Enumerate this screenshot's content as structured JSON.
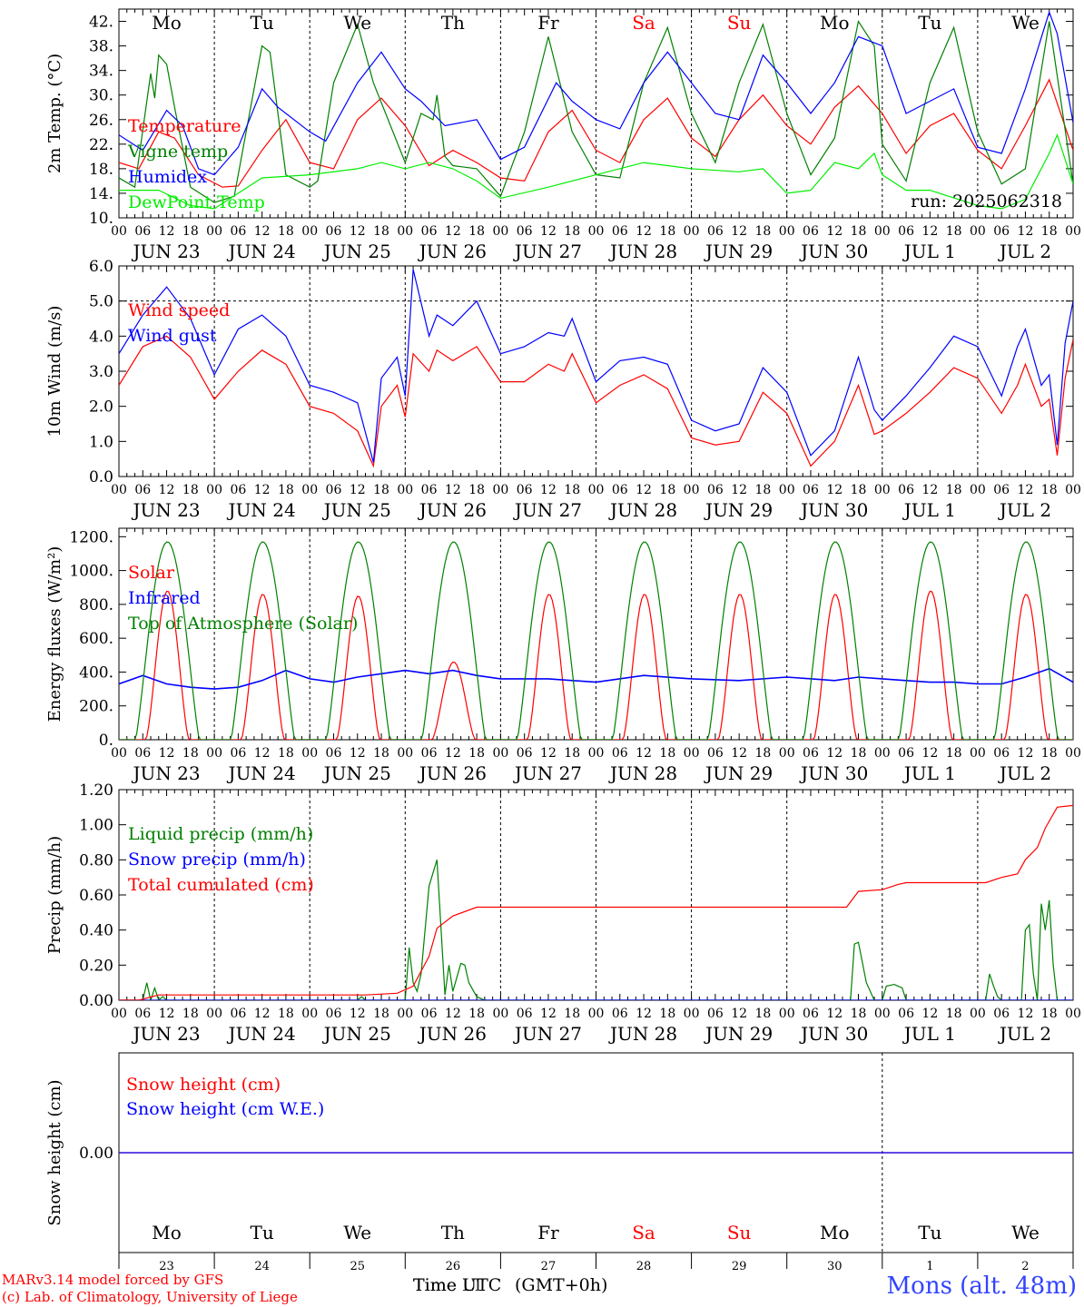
{
  "colors": {
    "red": "#ff0000",
    "green": "#008000",
    "blue": "#0000ff",
    "lime": "#00ee00",
    "black": "#000000",
    "footer_blue": "#3344ff"
  },
  "days": {
    "weekday_labels": [
      "Mo",
      "Tu",
      "We",
      "Th",
      "Fr",
      "Sa",
      "Su",
      "Mo",
      "Tu",
      "We"
    ],
    "weekend_indices": [
      5,
      6
    ],
    "date_labels": [
      "JUN 23",
      "JUN 24",
      "JUN 25",
      "JUN 26",
      "JUN 27",
      "JUN 28",
      "JUN 29",
      "JUN 30",
      "JUL  1",
      "JUL  2"
    ],
    "day_numbers": [
      "23",
      "24",
      "25",
      "26",
      "27",
      "28",
      "29",
      "30",
      "1",
      "2"
    ],
    "hour_tick_labels": [
      "00",
      "06",
      "12",
      "18"
    ],
    "end_label": "00"
  },
  "chart_data": [
    {
      "id": "temperature",
      "type": "line",
      "ylabel": "2m Temp. (°C)",
      "ylim": [
        10,
        44
      ],
      "yticks": [
        "10.",
        "14.",
        "18.",
        "22.",
        "26.",
        "30.",
        "34.",
        "38.",
        "42."
      ],
      "ytick_values": [
        10,
        14,
        18,
        22,
        26,
        30,
        34,
        38,
        42
      ],
      "x_unit": "hours since JUN 23 00 UTC",
      "annotation": "run: 2025062318",
      "series": [
        {
          "name": "Temperature",
          "color": "#ff0000",
          "x": [
            0,
            5,
            10,
            14,
            20,
            26,
            30,
            36,
            42,
            48,
            54,
            60,
            66,
            72,
            78,
            84,
            90,
            96,
            102,
            108,
            114,
            120,
            126,
            132,
            138,
            144,
            150,
            156,
            162,
            168,
            174,
            180,
            186,
            192,
            198,
            204,
            210,
            216,
            222,
            228,
            234,
            240
          ],
          "y": [
            19,
            18,
            24,
            23,
            17,
            15,
            15.2,
            21,
            26,
            19,
            18,
            26,
            29.5,
            25,
            18.5,
            21,
            19,
            16.5,
            16,
            24,
            27.5,
            21,
            19,
            26,
            29.5,
            23,
            20,
            26,
            30,
            25,
            22,
            28,
            31.5,
            27,
            20.5,
            25,
            27,
            21,
            18,
            25,
            32.5,
            21
          ]
        },
        {
          "name": "Vigne temp",
          "color": "#008000",
          "x": [
            0,
            4,
            8,
            9,
            10,
            12,
            14,
            18,
            24,
            29,
            36,
            38,
            42,
            48,
            50,
            54,
            60,
            64,
            72,
            76,
            79,
            80,
            82,
            84,
            90,
            96,
            102,
            108,
            114,
            120,
            126,
            132,
            138,
            144,
            150,
            156,
            162,
            168,
            174,
            180,
            186,
            190,
            192,
            198,
            204,
            210,
            216,
            222,
            228,
            234,
            240
          ],
          "y": [
            16.5,
            15,
            33.5,
            29.5,
            36.5,
            35,
            28,
            15,
            12.5,
            13.5,
            38,
            37,
            17,
            15,
            16,
            32,
            41.5,
            32,
            19,
            27,
            26,
            30,
            20,
            18.5,
            18,
            13.5,
            24,
            39.5,
            24,
            17,
            16.5,
            32,
            41,
            27,
            19,
            32,
            41.5,
            27,
            17,
            23,
            42,
            38,
            22,
            16,
            32,
            41,
            24,
            15.5,
            18,
            42,
            15.5
          ]
        },
        {
          "name": "Humidex",
          "color": "#0000ff",
          "x": [
            0,
            6,
            12,
            16,
            20,
            24,
            30,
            36,
            40,
            48,
            52,
            60,
            66,
            72,
            76,
            82,
            90,
            96,
            102,
            110,
            114,
            120,
            126,
            132,
            138,
            144,
            150,
            156,
            162,
            168,
            174,
            180,
            186,
            192,
            198,
            204,
            210,
            216,
            222,
            228,
            234,
            236,
            240
          ],
          "y": [
            23.5,
            21,
            27.5,
            25,
            18,
            17,
            21.5,
            31,
            28,
            24,
            22.5,
            32,
            37,
            31,
            29,
            25,
            26,
            19.5,
            21.5,
            32,
            29,
            26,
            24.5,
            32,
            37,
            32,
            27,
            26,
            36.5,
            32,
            27,
            32,
            39.5,
            38,
            27,
            29,
            31,
            21.5,
            20.5,
            31,
            43.5,
            40,
            25.5
          ]
        },
        {
          "name": "DewPoint Temp",
          "color": "#00ee00",
          "x": [
            0,
            10,
            18,
            24,
            30,
            36,
            48,
            60,
            66,
            72,
            78,
            84,
            90,
            96,
            108,
            120,
            132,
            144,
            156,
            162,
            168,
            174,
            180,
            186,
            190,
            192,
            198,
            204,
            216,
            222,
            228,
            234,
            236,
            240
          ],
          "y": [
            14.5,
            14.5,
            12,
            11.5,
            14,
            16.5,
            17,
            18,
            19,
            18,
            19,
            18,
            16,
            13.2,
            15,
            17,
            19,
            18,
            17.5,
            18,
            14,
            14.5,
            19,
            18,
            20.5,
            17,
            14.5,
            14.5,
            12,
            11.5,
            13,
            20.5,
            23.5,
            15.5
          ]
        }
      ]
    },
    {
      "id": "wind",
      "type": "line",
      "ylabel": "10m Wind (m/s)",
      "ylim": [
        0,
        6
      ],
      "yticks": [
        "0.0",
        "1.0",
        "2.0",
        "3.0",
        "4.0",
        "5.0",
        "6.0"
      ],
      "ytick_values": [
        0,
        1,
        2,
        3,
        4,
        5,
        6
      ],
      "reference_line": 5,
      "x_unit": "hours since JUN 23 00 UTC",
      "series": [
        {
          "name": "Wind speed",
          "color": "#ff0000",
          "x": [
            0,
            6,
            12,
            18,
            24,
            30,
            36,
            42,
            48,
            54,
            60,
            64,
            66,
            70,
            72,
            74,
            78,
            80,
            84,
            90,
            96,
            102,
            108,
            112,
            114,
            120,
            126,
            132,
            138,
            144,
            150,
            156,
            162,
            168,
            174,
            180,
            186,
            190,
            192,
            198,
            204,
            210,
            216,
            222,
            226,
            228,
            232,
            234,
            236,
            238,
            240
          ],
          "y": [
            2.6,
            3.7,
            4.0,
            3.4,
            2.2,
            3.0,
            3.6,
            3.2,
            2.0,
            1.8,
            1.3,
            0.3,
            2.0,
            2.6,
            1.7,
            3.5,
            3.0,
            3.6,
            3.3,
            3.7,
            2.7,
            2.7,
            3.2,
            3.0,
            3.5,
            2.1,
            2.6,
            2.9,
            2.5,
            1.1,
            0.9,
            1.0,
            2.4,
            1.8,
            0.3,
            1.0,
            2.6,
            1.2,
            1.3,
            1.8,
            2.4,
            3.1,
            2.8,
            1.8,
            2.6,
            3.2,
            2.0,
            2.2,
            0.6,
            2.8,
            3.9
          ]
        },
        {
          "name": "Wind gust",
          "color": "#0000ff",
          "x": [
            0,
            6,
            12,
            18,
            24,
            30,
            36,
            42,
            48,
            54,
            60,
            64,
            66,
            70,
            72,
            74,
            78,
            80,
            84,
            90,
            96,
            102,
            108,
            112,
            114,
            120,
            126,
            132,
            138,
            144,
            150,
            156,
            162,
            168,
            174,
            180,
            186,
            190,
            192,
            198,
            204,
            210,
            216,
            222,
            226,
            228,
            232,
            234,
            236,
            238,
            240
          ],
          "y": [
            3.5,
            4.6,
            5.4,
            4.5,
            2.9,
            4.2,
            4.6,
            4.0,
            2.6,
            2.4,
            2.1,
            0.4,
            2.8,
            3.4,
            2.3,
            5.9,
            4.0,
            4.6,
            4.3,
            5.0,
            3.5,
            3.7,
            4.1,
            4.0,
            4.5,
            2.7,
            3.3,
            3.4,
            3.2,
            1.6,
            1.3,
            1.5,
            3.1,
            2.4,
            0.6,
            1.3,
            3.4,
            1.9,
            1.6,
            2.3,
            3.1,
            4.0,
            3.7,
            2.3,
            3.7,
            4.2,
            2.6,
            2.9,
            0.9,
            3.8,
            5.0
          ]
        }
      ]
    },
    {
      "id": "energy",
      "type": "line",
      "ylabel": "Energy fluxes (W/m²)",
      "ylim": [
        0,
        1250
      ],
      "yticks": [
        "0.",
        "200.",
        "400.",
        "600.",
        "800.",
        "1000.",
        "1200."
      ],
      "ytick_values": [
        0,
        200,
        400,
        600,
        800,
        1000,
        1200
      ],
      "x_unit": "hours since JUN 23 00 UTC",
      "series": [
        {
          "name": "Solar",
          "color": "#ff0000",
          "daily_peak_wm2": [
            880,
            860,
            850,
            460,
            860,
            860,
            860,
            860,
            880,
            860
          ]
        },
        {
          "name": "Infrared",
          "color": "#0000ff",
          "x": [
            0,
            6,
            12,
            18,
            24,
            30,
            36,
            42,
            48,
            54,
            60,
            66,
            72,
            78,
            84,
            90,
            96,
            108,
            120,
            132,
            144,
            156,
            168,
            180,
            186,
            192,
            198,
            204,
            210,
            216,
            222,
            228,
            234,
            240
          ],
          "y": [
            330,
            380,
            330,
            310,
            300,
            310,
            350,
            410,
            360,
            340,
            370,
            390,
            410,
            390,
            410,
            380,
            360,
            360,
            340,
            380,
            360,
            350,
            370,
            350,
            370,
            360,
            350,
            340,
            340,
            330,
            330,
            370,
            420,
            340
          ]
        },
        {
          "name": "Top of Atmosphere (Solar)",
          "color": "#008000",
          "daily_peak_wm2": 1170
        }
      ]
    },
    {
      "id": "precip",
      "type": "line",
      "ylabel": "Precip (mm/h)",
      "ylim": [
        0,
        1.2
      ],
      "yticks": [
        "0.00",
        "0.20",
        "0.40",
        "0.60",
        "0.80",
        "1.00",
        "1.20"
      ],
      "ytick_values": [
        0,
        0.2,
        0.4,
        0.6,
        0.8,
        1.0,
        1.2
      ],
      "x_unit": "hours since JUN 23 00 UTC",
      "series": [
        {
          "name": "Liquid precip (mm/h)",
          "color": "#008000",
          "x": [
            0,
            6,
            7,
            8,
            9,
            10,
            11,
            12,
            60,
            61,
            62,
            72,
            73,
            74,
            75,
            76,
            78,
            80,
            82,
            83,
            84,
            85,
            86,
            87,
            88,
            90,
            91,
            92,
            94,
            96,
            184,
            185,
            186,
            188,
            190,
            192,
            193,
            195,
            197,
            198,
            218,
            219,
            220,
            221,
            222,
            227,
            228,
            229,
            230,
            231,
            232,
            233,
            234,
            235,
            236,
            240
          ],
          "y": [
            0,
            0,
            0.1,
            0,
            0.07,
            0,
            0.02,
            0,
            0,
            0.02,
            0,
            0,
            0.3,
            0.1,
            0.05,
            0.15,
            0.65,
            0.8,
            0.03,
            0.2,
            0.05,
            0.13,
            0.21,
            0.2,
            0.1,
            0.02,
            0.01,
            0,
            0,
            0,
            0,
            0.32,
            0.33,
            0.1,
            0,
            0,
            0.08,
            0.09,
            0.07,
            0,
            0,
            0.15,
            0.08,
            0.02,
            0,
            0,
            0.4,
            0.43,
            0.15,
            0,
            0.55,
            0.4,
            0.57,
            0.2,
            0,
            0
          ]
        },
        {
          "name": "Snow precip (mm/h)",
          "color": "#0000ff",
          "x": [
            0,
            240
          ],
          "y": [
            0,
            0
          ]
        },
        {
          "name": "Total cumulated (cm)",
          "color": "#ff0000",
          "x": [
            0,
            5,
            10,
            62,
            70,
            74,
            78,
            80,
            84,
            90,
            183,
            186,
            192,
            196,
            198,
            218,
            222,
            226,
            228,
            231,
            233,
            236,
            240
          ],
          "y": [
            0,
            0,
            0.03,
            0.03,
            0.04,
            0.08,
            0.25,
            0.41,
            0.48,
            0.53,
            0.53,
            0.62,
            0.63,
            0.66,
            0.67,
            0.67,
            0.7,
            0.72,
            0.8,
            0.87,
            0.98,
            1.1,
            1.11
          ]
        }
      ]
    },
    {
      "id": "snow",
      "type": "line",
      "ylabel": "Snow height (cm)",
      "yticks": [
        "0.00"
      ],
      "ytick_values": [
        0
      ],
      "ylim": [
        -1,
        1
      ],
      "x_unit": "hours since JUN 23 00 UTC",
      "series": [
        {
          "name": "Snow height (cm)",
          "color": "#ff0000",
          "x": [
            0,
            240
          ],
          "y": [
            0,
            0
          ]
        },
        {
          "name": "Snow height (cm W.E.)",
          "color": "#0000ff",
          "x": [
            0,
            240
          ],
          "y": [
            0,
            0
          ]
        }
      ]
    }
  ],
  "footer": {
    "model_line": "MARv3.14 model forced by GFS",
    "copyright_line": "(c) Lab. of Climatology, University of Liege",
    "time_label_a": "Time UTC",
    "time_label_b": "Time LT",
    "time_label_c": "(GMT+0h)",
    "location": "Mons (alt. 48m)"
  }
}
